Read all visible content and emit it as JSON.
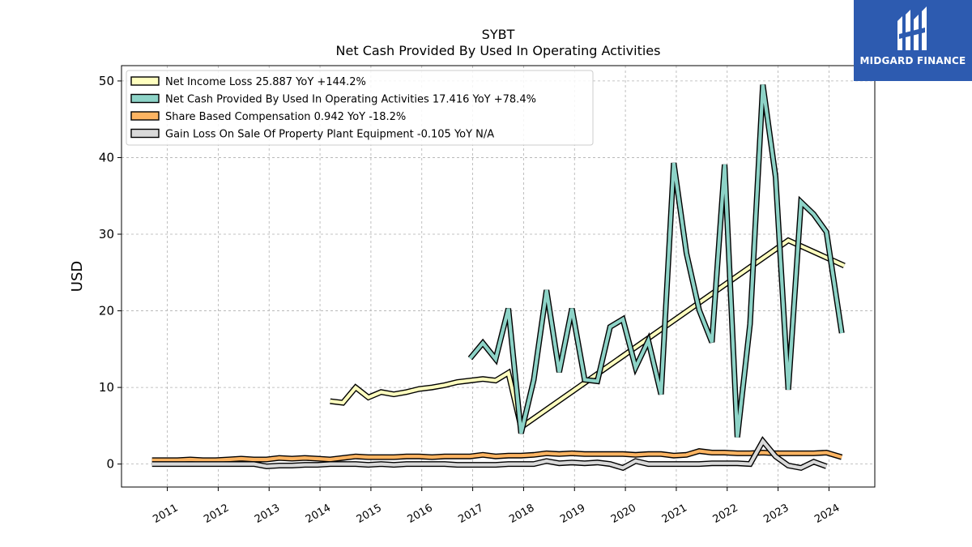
{
  "brand": {
    "name": "MIDGARD FINANCE",
    "bg_color": "#2d5bb0"
  },
  "chart_data": {
    "type": "line",
    "title": "SYBT",
    "subtitle": "Net Cash Provided By Used In Operating Activities",
    "ylabel": "USD",
    "xlabel": "",
    "ylim": [
      -3,
      52
    ],
    "xlim": [
      2010.1,
      2024.9
    ],
    "yticks": [
      0,
      10,
      20,
      30,
      40,
      50
    ],
    "xticks": [
      "2011",
      "2012",
      "2013",
      "2014",
      "2015",
      "2016",
      "2017",
      "2018",
      "2019",
      "2020",
      "2021",
      "2022",
      "2023",
      "2024"
    ],
    "grid": true,
    "legend_position": "top-left",
    "series": [
      {
        "name": "Net Income Loss  25.887 YoY +144.2%",
        "color": "#ffffbf",
        "x": [
          2014.2,
          2014.45,
          2014.7,
          2014.95,
          2015.2,
          2015.45,
          2015.7,
          2015.95,
          2016.2,
          2016.45,
          2016.7,
          2016.95,
          2017.2,
          2017.45,
          2017.7,
          2017.95,
          2023.2,
          2024.3
        ],
        "y": [
          8.2,
          8.0,
          10.0,
          8.7,
          9.4,
          9.1,
          9.4,
          9.8,
          10.0,
          10.3,
          10.7,
          10.9,
          11.1,
          10.9,
          11.9,
          4.8,
          29.2,
          25.9
        ]
      },
      {
        "name": "Net Cash Provided By Used In Operating Activities  17.416 YoY +78.4%",
        "color": "#8dd3c7",
        "x": [
          2016.95,
          2017.2,
          2017.45,
          2017.7,
          2017.95,
          2018.2,
          2018.45,
          2018.7,
          2018.95,
          2019.2,
          2019.45,
          2019.7,
          2019.95,
          2020.2,
          2020.45,
          2020.7,
          2020.95,
          2021.2,
          2021.45,
          2021.7,
          2021.95,
          2022.2,
          2022.45,
          2022.7,
          2022.95,
          2023.2,
          2023.45,
          2023.7,
          2023.95,
          2024.25
        ],
        "y": [
          13.8,
          15.8,
          13.7,
          20.3,
          4.0,
          11.0,
          22.7,
          12.0,
          20.3,
          11.0,
          10.8,
          17.9,
          18.9,
          12.6,
          16.1,
          9.1,
          39.3,
          27.5,
          20.1,
          15.9,
          39.1,
          3.5,
          18.3,
          49.5,
          37.5,
          9.7,
          34.2,
          32.6,
          30.3,
          17.1
        ]
      },
      {
        "name": "Share Based Compensation  0.942 YoY -18.2%",
        "color": "#fdb462",
        "x": [
          2010.7,
          2010.95,
          2011.2,
          2011.45,
          2011.7,
          2011.95,
          2012.2,
          2012.45,
          2012.7,
          2012.95,
          2013.2,
          2013.45,
          2013.7,
          2013.95,
          2014.2,
          2014.45,
          2014.7,
          2014.95,
          2015.2,
          2015.45,
          2015.7,
          2015.95,
          2016.2,
          2016.45,
          2016.7,
          2016.95,
          2017.2,
          2017.45,
          2017.7,
          2017.95,
          2018.2,
          2018.45,
          2018.7,
          2018.95,
          2019.2,
          2019.45,
          2019.7,
          2019.95,
          2020.2,
          2020.45,
          2020.7,
          2020.95,
          2021.2,
          2021.45,
          2021.7,
          2021.95,
          2022.2,
          2022.45,
          2022.7,
          2022.95,
          2023.2,
          2023.45,
          2023.7,
          2023.95,
          2024.25
        ],
        "y": [
          0.5,
          0.5,
          0.5,
          0.6,
          0.5,
          0.5,
          0.6,
          0.7,
          0.6,
          0.6,
          0.8,
          0.7,
          0.8,
          0.7,
          0.6,
          0.8,
          1.0,
          0.9,
          0.9,
          0.9,
          1.0,
          1.0,
          0.9,
          1.0,
          1.0,
          1.0,
          1.2,
          1.0,
          1.1,
          1.1,
          1.2,
          1.4,
          1.3,
          1.4,
          1.3,
          1.3,
          1.3,
          1.3,
          1.2,
          1.3,
          1.3,
          1.1,
          1.2,
          1.7,
          1.5,
          1.5,
          1.4,
          1.4,
          1.5,
          1.4,
          1.4,
          1.4,
          1.4,
          1.5,
          0.9
        ]
      },
      {
        "name": "Gain Loss On Sale Of Property Plant Equipment  -0.105 YoY N/A",
        "color": "#d9d9d9",
        "x": [
          2010.7,
          2010.95,
          2011.2,
          2011.45,
          2011.7,
          2011.95,
          2012.2,
          2012.45,
          2012.7,
          2012.95,
          2013.2,
          2013.45,
          2013.7,
          2013.95,
          2014.2,
          2014.45,
          2014.7,
          2014.95,
          2015.2,
          2015.45,
          2015.7,
          2015.95,
          2016.2,
          2016.45,
          2016.7,
          2016.95,
          2017.2,
          2017.45,
          2017.7,
          2017.95,
          2018.2,
          2018.45,
          2018.7,
          2018.95,
          2019.2,
          2019.45,
          2019.7,
          2019.95,
          2020.2,
          2020.45,
          2020.7,
          2020.95,
          2021.2,
          2021.45,
          2021.7,
          2021.95,
          2022.2,
          2022.45,
          2022.7,
          2022.95,
          2023.2,
          2023.45,
          2023.7,
          2023.95
        ],
        "y": [
          0.0,
          0.0,
          0.0,
          0.0,
          0.0,
          0.0,
          0.0,
          0.0,
          0.0,
          -0.3,
          -0.2,
          -0.2,
          -0.1,
          -0.1,
          0.0,
          0.0,
          0.0,
          -0.1,
          0.0,
          -0.1,
          0.0,
          0.0,
          0.0,
          0.0,
          -0.1,
          -0.1,
          -0.1,
          -0.1,
          0.0,
          0.0,
          0.0,
          0.4,
          0.1,
          0.2,
          0.1,
          0.2,
          0.0,
          -0.5,
          0.4,
          0.0,
          0.0,
          0.0,
          0.0,
          0.0,
          0.1,
          0.1,
          0.1,
          0.0,
          3.0,
          1.0,
          -0.2,
          -0.5,
          0.3,
          -0.3
        ]
      }
    ]
  }
}
